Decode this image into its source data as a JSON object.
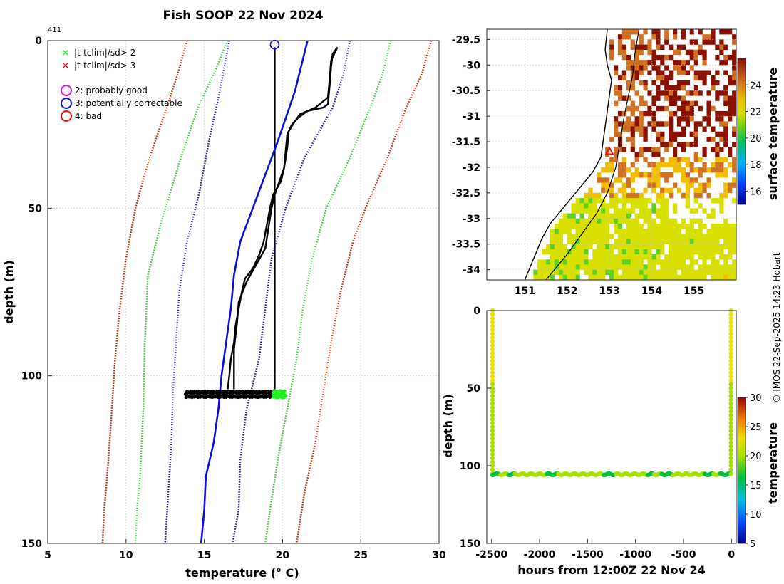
{
  "title": "Fish SOOP 22 Nov 2024",
  "profile_id": "411",
  "credit": "© IMOS 22-Sep-2025 14:23 Hobart",
  "colors": {
    "profile": "#000000",
    "flag_green": "#22ee22",
    "flag_red": "#dd1111",
    "clim_mean": "#0a10d8",
    "sd_blue": "#1a1aa8",
    "sd_green": "#33cc33",
    "sd_red": "#cc2200",
    "marker_blue": "#1010ee",
    "marker_magenta": "#dd11dd"
  },
  "legend": {
    "flag2": "|t-tclim|/sd> 2",
    "flag3": "|t-tclim|/sd> 3",
    "qc2": "2: probably good",
    "qc3": "3: potentially correctable",
    "qc4": "4: bad"
  },
  "profile_chart": {
    "type": "line",
    "xlabel": "temperature (° C)",
    "ylabel": "depth (m)",
    "xlim": [
      5,
      30
    ],
    "ylim": [
      150,
      0
    ],
    "xticks": [
      5,
      10,
      15,
      20,
      25,
      30
    ],
    "yticks": [
      0,
      50,
      100,
      150
    ],
    "series": [
      {
        "name": "profile-a",
        "style": "black",
        "points": [
          [
            23.5,
            2
          ],
          [
            23.2,
            4
          ],
          [
            23.1,
            8
          ],
          [
            23.0,
            14
          ],
          [
            22.9,
            19
          ],
          [
            22.6,
            20
          ],
          [
            21.6,
            21
          ],
          [
            21.0,
            23
          ],
          [
            20.6,
            25
          ],
          [
            20.3,
            28
          ],
          [
            20.2,
            33
          ],
          [
            20.1,
            38
          ],
          [
            19.9,
            42
          ],
          [
            19.4,
            46
          ],
          [
            19.2,
            50
          ],
          [
            19.0,
            55
          ],
          [
            18.8,
            60
          ],
          [
            18.5,
            64
          ],
          [
            18.1,
            68
          ],
          [
            17.6,
            71
          ],
          [
            17.4,
            75
          ],
          [
            17.2,
            80
          ],
          [
            17.0,
            85
          ],
          [
            16.9,
            90
          ],
          [
            16.7,
            95
          ],
          [
            16.6,
            100
          ],
          [
            16.5,
            104
          ]
        ]
      },
      {
        "name": "profile-b",
        "style": "black",
        "points": [
          [
            23.5,
            2
          ],
          [
            23.1,
            6
          ],
          [
            23.0,
            12
          ],
          [
            22.9,
            17
          ],
          [
            22.1,
            20
          ],
          [
            21.1,
            22
          ],
          [
            20.8,
            24
          ],
          [
            20.4,
            27
          ],
          [
            20.3,
            32
          ],
          [
            20.1,
            38
          ],
          [
            19.8,
            42
          ],
          [
            19.5,
            46
          ],
          [
            19.3,
            50
          ],
          [
            19.1,
            56
          ],
          [
            18.9,
            62
          ],
          [
            18.3,
            67
          ],
          [
            17.7,
            72
          ],
          [
            17.2,
            78
          ],
          [
            17.1,
            84
          ],
          [
            16.9,
            92
          ],
          [
            16.9,
            98
          ],
          [
            16.9,
            104
          ]
        ]
      },
      {
        "name": "profile-c",
        "style": "black",
        "points": [
          [
            19.5,
            2
          ],
          [
            19.5,
            30
          ],
          [
            19.5,
            60
          ],
          [
            19.5,
            104
          ]
        ]
      },
      {
        "name": "clim-mean",
        "style": "blue-solid",
        "points": [
          [
            21.6,
            0
          ],
          [
            20.8,
            15
          ],
          [
            19.7,
            30
          ],
          [
            18.9,
            40
          ],
          [
            18.1,
            50
          ],
          [
            17.3,
            60
          ],
          [
            16.9,
            70
          ],
          [
            16.7,
            80
          ],
          [
            16.4,
            90
          ],
          [
            16.1,
            100
          ],
          [
            15.9,
            110
          ],
          [
            15.6,
            120
          ],
          [
            15.1,
            130
          ],
          [
            15.0,
            140
          ],
          [
            14.8,
            150
          ]
        ]
      },
      {
        "name": "sd1-low",
        "style": "blue-dotted",
        "points": [
          [
            16.6,
            0
          ],
          [
            16.0,
            15
          ],
          [
            15.3,
            30
          ],
          [
            14.7,
            45
          ],
          [
            13.9,
            60
          ],
          [
            13.4,
            75
          ],
          [
            13.2,
            90
          ],
          [
            13.0,
            105
          ],
          [
            12.9,
            120
          ],
          [
            12.7,
            135
          ],
          [
            12.5,
            150
          ]
        ]
      },
      {
        "name": "sd1-high",
        "style": "blue-dotted",
        "points": [
          [
            24.3,
            0
          ],
          [
            23.9,
            10
          ],
          [
            23.2,
            20
          ],
          [
            21.4,
            35
          ],
          [
            20.2,
            50
          ],
          [
            19.3,
            65
          ],
          [
            18.9,
            80
          ],
          [
            18.5,
            95
          ],
          [
            17.7,
            110
          ],
          [
            17.3,
            125
          ],
          [
            17.2,
            140
          ],
          [
            16.8,
            150
          ]
        ]
      },
      {
        "name": "sd2-low",
        "style": "green-dotted",
        "points": [
          [
            16.5,
            0
          ],
          [
            15.6,
            10
          ],
          [
            14.6,
            20
          ],
          [
            13.5,
            35
          ],
          [
            12.2,
            55
          ],
          [
            11.4,
            70
          ],
          [
            11.2,
            90
          ],
          [
            11.1,
            110
          ],
          [
            10.9,
            130
          ],
          [
            10.7,
            140
          ],
          [
            10.6,
            150
          ]
        ]
      },
      {
        "name": "sd2-high",
        "style": "green-dotted",
        "points": [
          [
            26.9,
            0
          ],
          [
            26.4,
            10
          ],
          [
            25.6,
            20
          ],
          [
            24.3,
            35
          ],
          [
            22.8,
            50
          ],
          [
            21.9,
            65
          ],
          [
            21.3,
            80
          ],
          [
            20.9,
            95
          ],
          [
            20.3,
            110
          ],
          [
            19.7,
            125
          ],
          [
            19.2,
            140
          ],
          [
            18.9,
            150
          ]
        ]
      },
      {
        "name": "sd3-low",
        "style": "red-dotted",
        "points": [
          [
            13.9,
            0
          ],
          [
            13.3,
            10
          ],
          [
            12.6,
            20
          ],
          [
            11.5,
            35
          ],
          [
            10.6,
            50
          ],
          [
            10.0,
            65
          ],
          [
            9.6,
            80
          ],
          [
            9.3,
            95
          ],
          [
            9.1,
            110
          ],
          [
            8.8,
            130
          ],
          [
            8.6,
            140
          ],
          [
            8.5,
            150
          ]
        ]
      },
      {
        "name": "sd3-high",
        "style": "red-dotted",
        "points": [
          [
            29.5,
            0
          ],
          [
            28.9,
            10
          ],
          [
            27.9,
            20
          ],
          [
            26.7,
            35
          ],
          [
            25.3,
            50
          ],
          [
            24.5,
            60
          ],
          [
            23.7,
            75
          ],
          [
            23.1,
            90
          ],
          [
            22.6,
            105
          ],
          [
            22.1,
            120
          ],
          [
            21.4,
            135
          ],
          [
            20.9,
            150
          ]
        ]
      }
    ],
    "bottom_cluster": {
      "depth": 105.5,
      "x_start": 13.8,
      "x_end": 19.3,
      "flagged_start": 19.4,
      "flagged_end": 20.2
    },
    "surface_marker": {
      "temperature": 19.5,
      "depth": 1.2
    }
  },
  "map_chart": {
    "type": "heatmap",
    "xlim": [
      150.1,
      156.0
    ],
    "ylim": [
      -34.2,
      -29.3
    ],
    "xticks": [
      151,
      152,
      153,
      154,
      155
    ],
    "yticks": [
      -29.5,
      -30,
      -30.5,
      -31,
      -31.5,
      -32,
      -32.5,
      -33,
      -33.5,
      -34
    ],
    "ylabels": [
      "-29.5",
      "-30",
      "-30.5",
      "-31",
      "-31.5",
      "-32",
      "-32.5",
      "-33",
      "-33.5",
      "-34"
    ],
    "colorbar_label": "surface temperature",
    "colorbar_range": [
      15,
      26
    ],
    "colorbar_ticks": [
      16,
      18,
      20,
      22,
      24
    ],
    "coast": [
      [
        152.95,
        -29.3
      ],
      [
        152.9,
        -29.7
      ],
      [
        152.95,
        -30.0
      ],
      [
        153.05,
        -30.3
      ],
      [
        153.0,
        -30.6
      ],
      [
        152.95,
        -30.9
      ],
      [
        152.9,
        -31.2
      ],
      [
        152.85,
        -31.5
      ],
      [
        152.8,
        -31.8
      ],
      [
        152.6,
        -32.1
      ],
      [
        152.3,
        -32.4
      ],
      [
        151.9,
        -32.8
      ],
      [
        151.6,
        -33.1
      ],
      [
        151.4,
        -33.4
      ],
      [
        151.25,
        -33.7
      ],
      [
        151.1,
        -34.0
      ],
      [
        151.0,
        -34.2
      ]
    ],
    "shelf_edge": [
      [
        153.7,
        -29.3
      ],
      [
        153.6,
        -29.8
      ],
      [
        153.55,
        -30.2
      ],
      [
        153.45,
        -30.6
      ],
      [
        153.35,
        -31.0
      ],
      [
        153.25,
        -31.5
      ],
      [
        153.15,
        -32.0
      ],
      [
        152.95,
        -32.5
      ],
      [
        152.7,
        -32.9
      ],
      [
        152.35,
        -33.3
      ],
      [
        152.0,
        -33.7
      ],
      [
        151.7,
        -34.0
      ],
      [
        151.5,
        -34.2
      ]
    ],
    "station": {
      "lon": 153.0,
      "lat": -31.7
    }
  },
  "time_chart": {
    "type": "scatter",
    "xlabel": "hours from 12:00Z 22 Nov 24",
    "ylabel": "depth (m)",
    "xlim": [
      -2550,
      50
    ],
    "ylim": [
      150,
      0
    ],
    "xticks": [
      -2500,
      -2000,
      -1500,
      -1000,
      -500,
      0
    ],
    "yticks": [
      0,
      50,
      100,
      150
    ],
    "colorbar_label": "temperature",
    "colorbar_range": [
      5,
      30
    ],
    "colorbar_ticks": [
      5,
      10,
      15,
      20,
      25,
      30
    ],
    "descent_temp": 21.5,
    "bottom_depth": 105.5,
    "bottom_temp": 17.0,
    "start_hour": -2490,
    "end_hour": -5
  }
}
